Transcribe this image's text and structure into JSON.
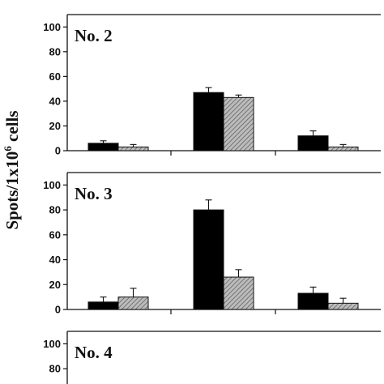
{
  "chart_data": [
    {
      "type": "bar",
      "title": "No. 2",
      "ylabel": "Spots/1x10",
      "ylabel_exponent": "6",
      "ylabel_suffix": " cells",
      "ylim": [
        0,
        110
      ],
      "yticks": [
        "0",
        "20",
        "40",
        "60",
        "80",
        "100"
      ],
      "groups": 3,
      "series": [
        {
          "name": "",
          "color": "#000000",
          "values": [
            6,
            47,
            12
          ],
          "errors": [
            2,
            4,
            4
          ]
        },
        {
          "name": "",
          "color": "#a0a0a0",
          "values": [
            3,
            43,
            3
          ],
          "errors": [
            2,
            2,
            2
          ]
        }
      ]
    },
    {
      "type": "bar",
      "title": "No. 3",
      "ylim": [
        0,
        110
      ],
      "yticks": [
        "0",
        "20",
        "40",
        "60",
        "80",
        "100"
      ],
      "groups": 3,
      "series": [
        {
          "name": "",
          "color": "#000000",
          "values": [
            6,
            80,
            13
          ],
          "errors": [
            4,
            8,
            5
          ]
        },
        {
          "name": "",
          "color": "#a0a0a0",
          "values": [
            10,
            26,
            5
          ],
          "errors": [
            7,
            6,
            4
          ]
        }
      ]
    },
    {
      "type": "bar",
      "title": "No. 4",
      "ylim": [
        0,
        110
      ],
      "yticks": [
        "80",
        "100"
      ],
      "groups": 3,
      "series": []
    }
  ]
}
